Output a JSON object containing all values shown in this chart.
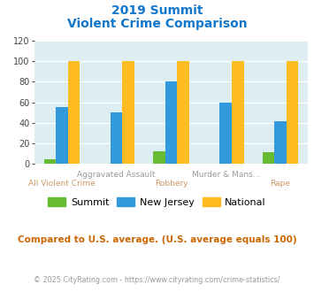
{
  "title_line1": "2019 Summit",
  "title_line2": "Violent Crime Comparison",
  "groups": [
    {
      "label_top": "",
      "label_bottom": "All Violent Crime",
      "summit": 4,
      "nj": 55,
      "national": 100
    },
    {
      "label_top": "Aggravated Assault",
      "label_bottom": "",
      "summit": 0,
      "nj": 50,
      "national": 100
    },
    {
      "label_top": "",
      "label_bottom": "Robbery",
      "summit": 12,
      "nj": 80,
      "national": 100
    },
    {
      "label_top": "Murder & Mans...",
      "label_bottom": "",
      "summit": 0,
      "nj": 60,
      "national": 100
    },
    {
      "label_top": "",
      "label_bottom": "Rape",
      "summit": 11,
      "nj": 41,
      "national": 100
    }
  ],
  "summit_color": "#66bb33",
  "nj_color": "#3399dd",
  "national_color": "#ffbb22",
  "bg_color": "#ddeef2",
  "ylim": [
    0,
    120
  ],
  "yticks": [
    0,
    20,
    40,
    60,
    80,
    100,
    120
  ],
  "title_color": "#1177cc",
  "xlabel_top_color": "#999999",
  "xlabel_bottom_color": "#cc9966",
  "legend_labels": [
    "Summit",
    "New Jersey",
    "National"
  ],
  "note_text": "Compared to U.S. average. (U.S. average equals 100)",
  "footer_text": "© 2025 CityRating.com - https://www.cityrating.com/crime-statistics/",
  "note_color": "#cc6600",
  "footer_color": "#999999",
  "bar_width": 0.22
}
